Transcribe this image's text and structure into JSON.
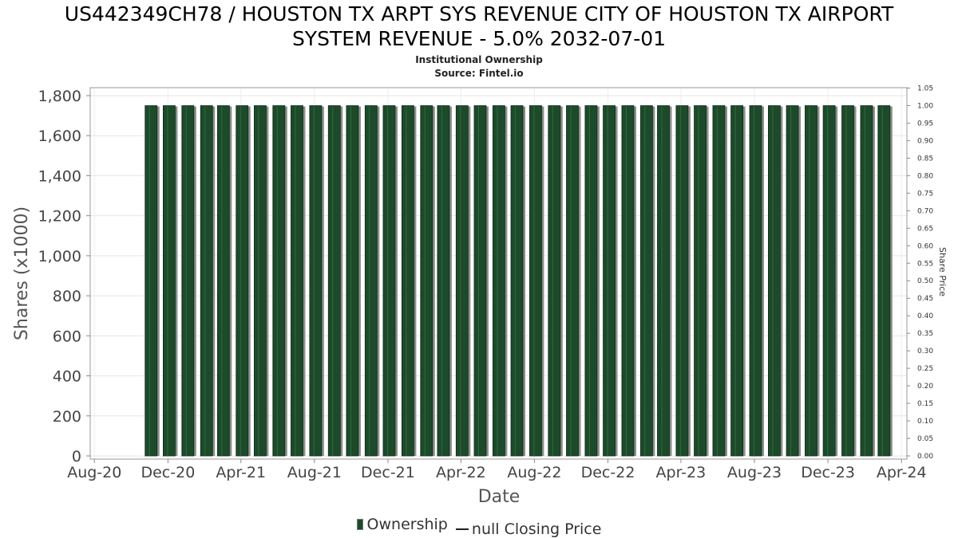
{
  "chart_data": {
    "type": "bar",
    "title": "US442349CH78 / HOUSTON TX ARPT SYS REVENUE CITY OF HOUSTON TX AIRPORT SYSTEM REVENUE - 5.0% 2032-07-01",
    "title_lines": [
      "US442349CH78 / HOUSTON TX ARPT SYS REVENUE CITY OF HOUSTON TX AIRPORT",
      "SYSTEM REVENUE - 5.0% 2032-07-01"
    ],
    "subtitle": "Institutional Ownership",
    "source": "Source: Fintel.io",
    "xlabel": "Date",
    "ylabel": "Shares (x1000)",
    "y2label": "Share Price",
    "x_ticks": [
      "Aug-20",
      "Dec-20",
      "Apr-21",
      "Aug-21",
      "Dec-21",
      "Apr-22",
      "Aug-22",
      "Dec-22",
      "Apr-23",
      "Aug-23",
      "Dec-23",
      "Apr-24"
    ],
    "y_ticks": [
      "0",
      "200",
      "400",
      "600",
      "800",
      "1,000",
      "1,200",
      "1,400",
      "1,600",
      "1,800"
    ],
    "y2_ticks": [
      "0.00",
      "0.05",
      "0.10",
      "0.15",
      "0.20",
      "0.25",
      "0.30",
      "0.35",
      "0.40",
      "0.45",
      "0.50",
      "0.55",
      "0.60",
      "0.65",
      "0.70",
      "0.75",
      "0.80",
      "0.85",
      "0.90",
      "0.95",
      "1.00",
      "1.05"
    ],
    "ylim": [
      0,
      1850
    ],
    "y2lim": [
      0,
      1.05
    ],
    "xlim": [
      "2020-07-25",
      "2024-04-10"
    ],
    "grid": true,
    "legend_position": "bottom",
    "series": [
      {
        "name": "Ownership",
        "type": "bar",
        "color": "#1d4a2a",
        "x": [
          "2020-11-03",
          "2020-12-03",
          "2021-01-03",
          "2021-02-03",
          "2021-03-03",
          "2021-04-03",
          "2021-05-03",
          "2021-06-03",
          "2021-07-03",
          "2021-08-03",
          "2021-09-03",
          "2021-10-03",
          "2021-11-03",
          "2021-12-03",
          "2022-01-03",
          "2022-02-03",
          "2022-03-03",
          "2022-04-03",
          "2022-05-03",
          "2022-06-03",
          "2022-07-03",
          "2022-08-03",
          "2022-09-03",
          "2022-10-03",
          "2022-11-03",
          "2022-12-03",
          "2023-01-03",
          "2023-02-03",
          "2023-03-03",
          "2023-04-03",
          "2023-05-03",
          "2023-06-03",
          "2023-07-03",
          "2023-08-03",
          "2023-09-03",
          "2023-10-03",
          "2023-11-03",
          "2023-12-03",
          "2024-01-03",
          "2024-02-03",
          "2024-03-03"
        ],
        "values": [
          1750,
          1750,
          1750,
          1750,
          1750,
          1750,
          1750,
          1750,
          1750,
          1750,
          1750,
          1750,
          1750,
          1750,
          1750,
          1750,
          1750,
          1750,
          1750,
          1750,
          1750,
          1750,
          1750,
          1750,
          1750,
          1750,
          1750,
          1750,
          1750,
          1750,
          1750,
          1750,
          1750,
          1750,
          1750,
          1750,
          1750,
          1750,
          1750,
          1750,
          1750
        ]
      },
      {
        "name": "null Closing Price",
        "type": "line",
        "color": "#222222",
        "x": [],
        "values": []
      }
    ]
  }
}
